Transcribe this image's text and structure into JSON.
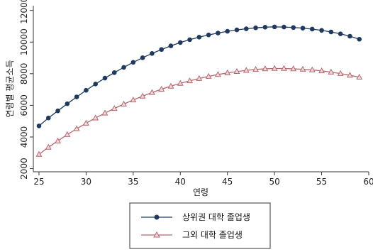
{
  "chart_data": {
    "type": "line",
    "xlabel": "연령",
    "ylabel": "연령별 평균소득",
    "xlim": [
      24.4,
      60
    ],
    "ylim": [
      1800,
      12300
    ],
    "xticks": [
      25,
      30,
      35,
      40,
      45,
      50,
      55,
      60
    ],
    "yticks": [
      2000,
      4000,
      6000,
      8000,
      10000,
      12000
    ],
    "grid": false,
    "legend_position": "bottom",
    "x": [
      25,
      26,
      27,
      28,
      29,
      30,
      31,
      32,
      33,
      34,
      35,
      36,
      37,
      38,
      39,
      40,
      41,
      42,
      43,
      44,
      45,
      46,
      47,
      48,
      49,
      50,
      51,
      52,
      53,
      54,
      55,
      56,
      57,
      58,
      59
    ],
    "series": [
      {
        "name": "상위권 대학 졸업생",
        "color": "#1f3a5f",
        "marker": "circle",
        "values": [
          4700,
          5200,
          5650,
          6100,
          6530,
          6950,
          7350,
          7720,
          8070,
          8400,
          8720,
          9010,
          9280,
          9530,
          9760,
          9970,
          10150,
          10310,
          10450,
          10570,
          10680,
          10770,
          10840,
          10900,
          10940,
          10960,
          10950,
          10920,
          10880,
          10820,
          10740,
          10640,
          10520,
          10370,
          10180
        ]
      },
      {
        "name": "그외 대학 졸업생",
        "color": "#b5676e",
        "marker": "triangle",
        "values": [
          2900,
          3350,
          3750,
          4150,
          4520,
          4870,
          5200,
          5510,
          5800,
          6080,
          6340,
          6580,
          6810,
          7020,
          7210,
          7390,
          7550,
          7700,
          7830,
          7950,
          8050,
          8140,
          8210,
          8270,
          8310,
          8330,
          8330,
          8310,
          8280,
          8240,
          8180,
          8100,
          8010,
          7900,
          7780
        ]
      }
    ]
  }
}
